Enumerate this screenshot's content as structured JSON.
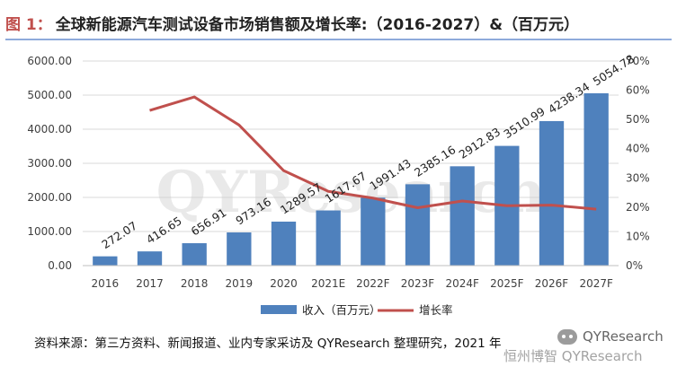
{
  "header": {
    "fig_label": "图 1：",
    "title": "全球新能源汽车测试设备市场销售额及增长率:（2016-2027）&（百万元）"
  },
  "chart_data": {
    "type": "bar",
    "categories": [
      "2016",
      "2017",
      "2018",
      "2019",
      "2020",
      "2021E",
      "2022F",
      "2023F",
      "2024F",
      "2025F",
      "2026F",
      "2027F"
    ],
    "series": [
      {
        "name": "收入（百万元）",
        "type": "bar",
        "axis": "left",
        "color": "#4f81bd",
        "values": [
          272.07,
          416.65,
          656.91,
          973.16,
          1289.57,
          1617.67,
          1991.43,
          2385.16,
          2912.83,
          3510.99,
          4238.34,
          5054.78
        ],
        "labels": [
          "272.07",
          "416.65",
          "656.91",
          "973.16",
          "1289.57",
          "1617.67",
          "1991.43",
          "2385.16",
          "2912.83",
          "3510.99",
          "4238.34",
          "5054.78"
        ]
      },
      {
        "name": "增长率",
        "type": "line",
        "axis": "right",
        "color": "#c0504d",
        "values": [
          null,
          53.1,
          57.7,
          48.1,
          32.5,
          25.4,
          23.1,
          19.8,
          22.1,
          20.5,
          20.7,
          19.3
        ]
      }
    ],
    "y_left": {
      "ylim": [
        0,
        6000
      ],
      "ticks": [
        "0.00",
        "1000.00",
        "2000.00",
        "3000.00",
        "4000.00",
        "5000.00",
        "6000.00"
      ]
    },
    "y_right": {
      "ylim": [
        0,
        70
      ],
      "ticks": [
        "0%",
        "10%",
        "20%",
        "30%",
        "40%",
        "50%",
        "60%",
        "70%"
      ]
    },
    "grid": true,
    "legend": "bottom",
    "watermark": "QYResearch"
  },
  "footer": {
    "source": "资料来源：第三方资料、新闻报道、业内专家采访及 QYResearch 整理研究，2021 年",
    "wm_brand": "QYResearch",
    "wm_line2": "恒州博智 QYResearch"
  }
}
